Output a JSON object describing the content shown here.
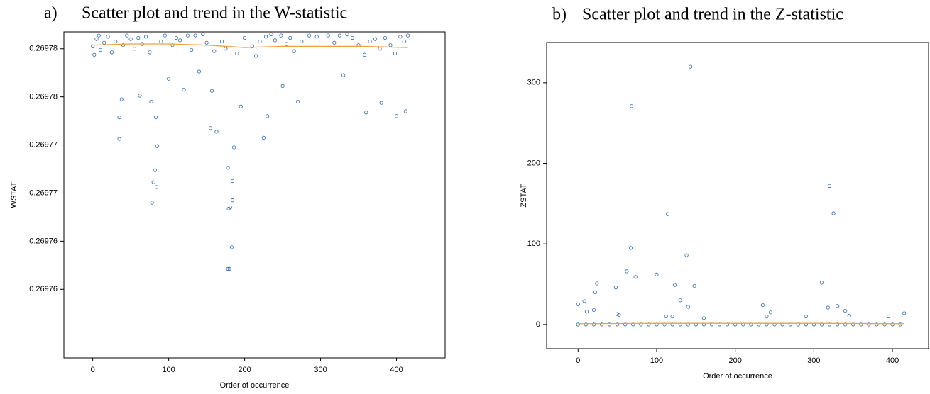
{
  "chart_data": [
    {
      "type": "scatter",
      "label": "a)",
      "title": "Scatter plot and trend in the W-statistic",
      "x_label": "Order of occurrence",
      "y_label": "WSTAT",
      "xlim": [
        -38,
        464
      ],
      "ylim": [
        0.2697543,
        0.2697814
      ],
      "xticks": [
        0,
        100,
        200,
        300,
        400
      ],
      "yticks": [
        {
          "value": 0.26978,
          "label": "0.26978"
        },
        {
          "value": 0.269776,
          "label": "0.26978"
        },
        {
          "value": 0.269772,
          "label": "0.26977"
        },
        {
          "value": 0.269768,
          "label": "0.26977"
        },
        {
          "value": 0.269764,
          "label": "0.26976"
        },
        {
          "value": 0.26976,
          "label": "0.26976"
        }
      ],
      "series": [
        {
          "style": "markers",
          "color": "#2f66a8",
          "x": [
            0,
            2,
            5,
            8,
            10,
            15,
            20,
            25,
            30,
            40,
            45,
            50,
            55,
            60,
            65,
            70,
            75,
            90,
            95,
            105,
            110,
            115,
            125,
            130,
            135,
            145,
            150,
            160,
            170,
            175,
            190,
            200,
            210,
            215,
            220,
            228,
            235,
            240,
            248,
            255,
            260,
            265,
            275,
            285,
            295,
            300,
            310,
            318,
            325,
            335,
            342,
            350,
            358,
            365,
            372,
            378,
            385,
            392,
            398,
            405,
            410,
            415,
            35,
            35,
            38,
            78,
            80,
            82,
            84,
            85,
            83,
            77,
            178,
            180,
            183,
            181,
            179,
            178,
            186,
            184,
            184,
            163,
            155,
            225,
            157,
            230,
            400,
            412,
            360,
            270,
            62,
            120,
            195,
            250,
            380,
            100,
            140,
            330
          ],
          "values": [
            0.2697802,
            0.2697795,
            0.2697808,
            0.2697811,
            0.2697799,
            0.2697805,
            0.269781,
            0.2697797,
            0.2697806,
            0.2697803,
            0.2697811,
            0.2697808,
            0.26978,
            0.2697809,
            0.2697804,
            0.269781,
            0.2697797,
            0.2697806,
            0.2697811,
            0.2697803,
            0.2697809,
            0.2697807,
            0.2697811,
            0.2697799,
            0.2697811,
            0.2697812,
            0.2697805,
            0.2697798,
            0.2697806,
            0.26978,
            0.2697796,
            0.2697809,
            0.2697802,
            0.2697794,
            0.2697806,
            0.269781,
            0.2697812,
            0.2697807,
            0.2697811,
            0.2697804,
            0.2697809,
            0.2697798,
            0.2697806,
            0.2697811,
            0.269781,
            0.2697806,
            0.2697811,
            0.2697805,
            0.2697811,
            0.2697812,
            0.2697809,
            0.2697803,
            0.2697795,
            0.2697806,
            0.2697808,
            0.26978,
            0.2697809,
            0.2697803,
            0.2697796,
            0.269781,
            0.2697806,
            0.2697811,
            0.2697725,
            0.2697743,
            0.2697758,
            0.2697672,
            0.2697689,
            0.2697699,
            0.2697685,
            0.2697719,
            0.2697743,
            0.2697756,
            0.2697617,
            0.2697617,
            0.2697635,
            0.2697668,
            0.2697667,
            0.2697701,
            0.2697718,
            0.269769,
            0.2697674,
            0.2697731,
            0.2697734,
            0.2697726,
            0.2697765,
            0.2697744,
            0.2697744,
            0.2697748,
            0.2697747,
            0.2697756,
            0.2697761,
            0.2697766,
            0.2697752,
            0.2697769,
            0.2697755,
            0.2697775,
            0.2697781,
            0.2697778
          ]
        },
        {
          "style": "line",
          "color": "#f0a040",
          "x": [
            0,
            50,
            100,
            150,
            200,
            250,
            300,
            350,
            415
          ],
          "values": [
            0.2697803,
            0.2697804,
            0.2697804,
            0.2697803,
            0.2697801,
            0.2697802,
            0.2697802,
            0.2697802,
            0.2697801
          ]
        }
      ]
    },
    {
      "type": "scatter",
      "label": "b)",
      "title": "Scatter plot and trend in the Z-statistic",
      "x_label": "Order of occurrence",
      "y_label": "ZSTAT",
      "xlim": [
        -40,
        446
      ],
      "ylim": [
        -30,
        350
      ],
      "xticks": [
        0,
        100,
        200,
        300,
        400
      ],
      "yticks": [
        0,
        100,
        200,
        300
      ],
      "series": [
        {
          "style": "markers",
          "color": "#2f66a8",
          "x": [
            0,
            10,
            20,
            30,
            40,
            50,
            60,
            70,
            80,
            90,
            100,
            110,
            120,
            130,
            140,
            150,
            160,
            170,
            180,
            190,
            200,
            210,
            220,
            230,
            240,
            250,
            260,
            270,
            280,
            290,
            300,
            310,
            320,
            330,
            340,
            350,
            360,
            370,
            380,
            390,
            400,
            410,
            0,
            8,
            11,
            20,
            22,
            24,
            48,
            50,
            52,
            62,
            67,
            68,
            73,
            100,
            112,
            114,
            120,
            123,
            130,
            138,
            140,
            143,
            148,
            160,
            235,
            240,
            245,
            290,
            310,
            318,
            320,
            325,
            330,
            340,
            345,
            395,
            415
          ],
          "values": [
            0,
            0,
            0,
            0,
            0,
            0,
            0,
            0,
            0,
            0,
            0,
            0,
            0,
            0,
            0,
            0,
            0,
            0,
            0,
            0,
            0,
            0,
            0,
            0,
            0,
            0,
            0,
            0,
            0,
            0,
            0,
            0,
            0,
            0,
            0,
            0,
            0,
            0,
            0,
            0,
            0,
            0,
            25,
            29,
            16,
            18,
            40,
            51,
            46,
            13,
            12,
            66,
            95,
            271,
            59,
            62,
            10,
            137,
            10,
            49,
            30,
            86,
            22,
            320,
            48,
            8,
            24,
            10,
            15,
            10,
            52,
            21,
            172,
            138,
            23,
            17,
            11,
            10,
            14
          ]
        },
        {
          "style": "line",
          "color": "#f0a040",
          "x": [
            0,
            100,
            200,
            300,
            415
          ],
          "values": [
            1,
            1.5,
            1.5,
            1.5,
            1
          ]
        }
      ]
    }
  ]
}
